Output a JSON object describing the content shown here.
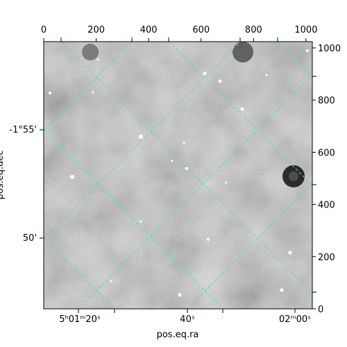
{
  "chart_data": {
    "type": "image",
    "xlabel": "pos.eq.ra",
    "ylabel": "pos.eq.dec",
    "xlim": [
      0,
      1024
    ],
    "ylim": [
      0,
      1024
    ],
    "xticks": [
      0,
      200,
      400,
      600,
      800,
      1000
    ],
    "yticks": [
      0,
      200,
      400,
      600,
      800,
      1000
    ],
    "ra_ticks": [
      "5ʰ01ᵐ20ˢ",
      "40ˢ",
      "02ᵐ00ˢ"
    ],
    "dec_ticks": [
      "-1°55'",
      "50'"
    ]
  }
}
